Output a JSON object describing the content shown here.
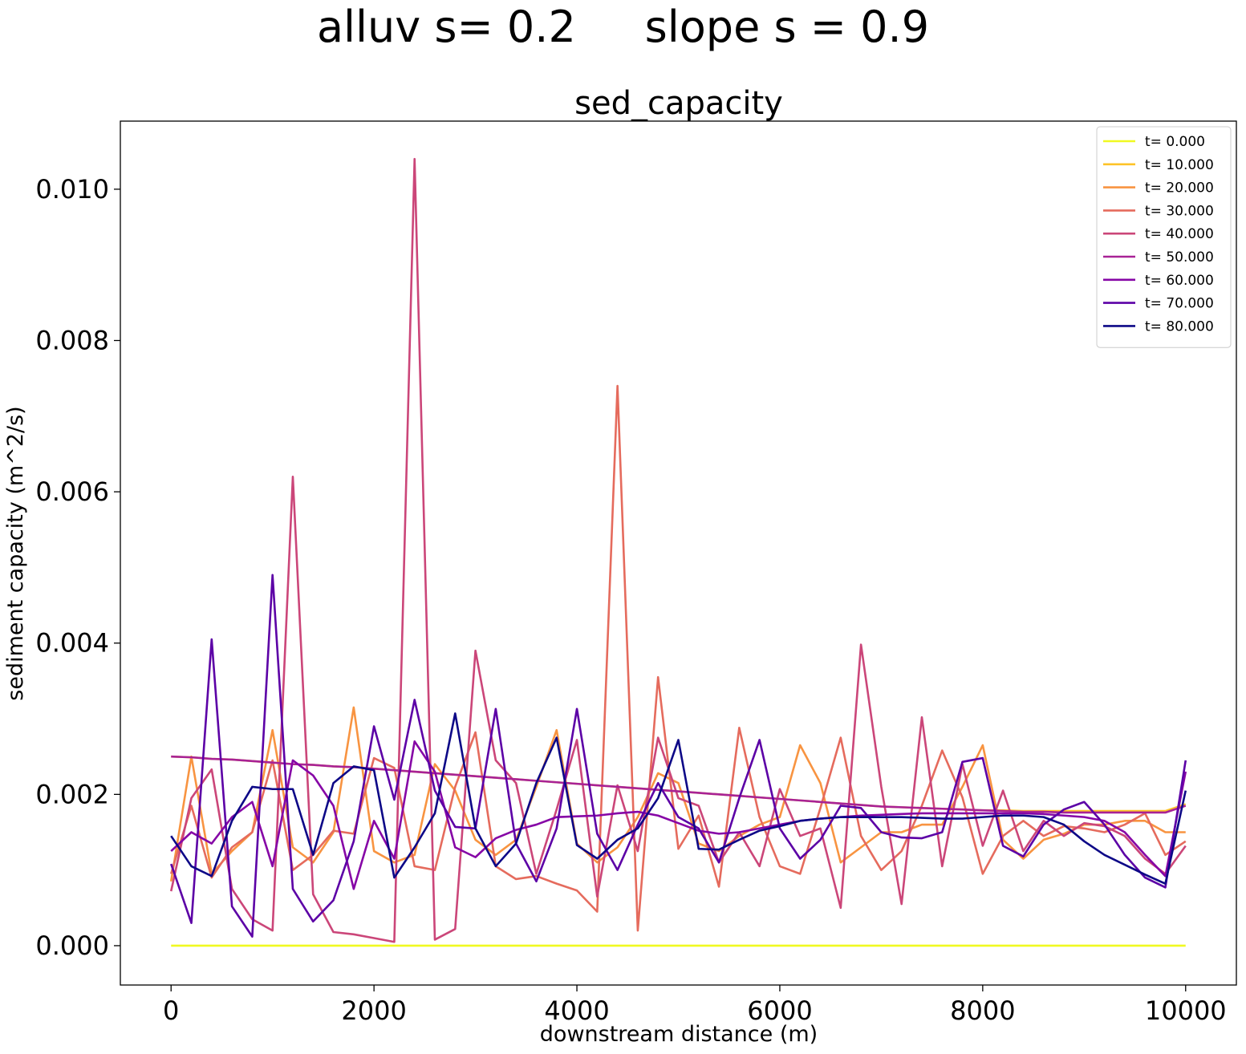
{
  "figure": {
    "suptitle": "alluv s= 0.2     slope s = 0.9"
  },
  "chart_data": {
    "type": "line",
    "title": "sed_capacity",
    "xlabel": "downstream distance (m)",
    "ylabel": "sediment capacity (m^2/s)",
    "xlim": [
      -500,
      10500
    ],
    "ylim": [
      -0.00052,
      0.0109
    ],
    "xticks": [
      0,
      2000,
      4000,
      6000,
      8000,
      10000
    ],
    "xtick_labels": [
      "0",
      "2000",
      "4000",
      "6000",
      "8000",
      "10000"
    ],
    "yticks": [
      0,
      0.002,
      0.004,
      0.006,
      0.008,
      0.01
    ],
    "ytick_labels": [
      "0.000",
      "0.002",
      "0.004",
      "0.006",
      "0.008",
      "0.010"
    ],
    "grid": false,
    "legend_position": "top-right",
    "x": [
      0,
      200,
      400,
      600,
      800,
      1000,
      1200,
      1400,
      1600,
      1800,
      2000,
      2200,
      2400,
      2600,
      2800,
      3000,
      3200,
      3400,
      3600,
      3800,
      4000,
      4200,
      4400,
      4600,
      4800,
      5000,
      5200,
      5400,
      5600,
      5800,
      6000,
      6200,
      6400,
      6600,
      6800,
      7000,
      7200,
      7400,
      7600,
      7800,
      8000,
      8200,
      8400,
      8600,
      8800,
      9000,
      9200,
      9400,
      9600,
      9800,
      10000
    ],
    "series": [
      {
        "name": "t= 0.000",
        "color": "#f0f921",
        "values": [
          0,
          0,
          0,
          0,
          0,
          0,
          0,
          0,
          0,
          0,
          0,
          0,
          0,
          0,
          0,
          0,
          0,
          0,
          0,
          0,
          0,
          0,
          0,
          0,
          0,
          0,
          0,
          0,
          0,
          0,
          0,
          0,
          0,
          0,
          0,
          0,
          0,
          0,
          0,
          0,
          0,
          0,
          0,
          0,
          0,
          0,
          0,
          0,
          0,
          0,
          0
        ]
      },
      {
        "name": "t= 10.000",
        "color": "#fdc328",
        "values": [
          0.0025,
          0.00249,
          0.00247,
          0.00246,
          0.00244,
          0.00242,
          0.0024,
          0.00239,
          0.00237,
          0.00236,
          0.00234,
          0.00232,
          0.0023,
          0.00228,
          0.00226,
          0.00224,
          0.00222,
          0.0022,
          0.00218,
          0.00216,
          0.00214,
          0.00212,
          0.0021,
          0.00208,
          0.00206,
          0.00204,
          0.00202,
          0.002,
          0.00198,
          0.00196,
          0.00194,
          0.00192,
          0.0019,
          0.00188,
          0.00186,
          0.00184,
          0.00183,
          0.00182,
          0.00181,
          0.0018,
          0.00179,
          0.00179,
          0.00178,
          0.00178,
          0.00178,
          0.00178,
          0.00178,
          0.00178,
          0.00178,
          0.00178,
          0.00187
        ]
      },
      {
        "name": "t= 20.000",
        "color": "#f89441",
        "values": [
          0.00085,
          0.0025,
          0.00095,
          0.00125,
          0.0015,
          0.00285,
          0.0013,
          0.0011,
          0.0015,
          0.00315,
          0.00125,
          0.0011,
          0.0012,
          0.0024,
          0.00205,
          0.0014,
          0.0012,
          0.0014,
          0.0021,
          0.00285,
          0.00135,
          0.0011,
          0.0013,
          0.0017,
          0.00228,
          0.00215,
          0.00135,
          0.00125,
          0.00145,
          0.0016,
          0.0017,
          0.00265,
          0.00215,
          0.0011,
          0.0013,
          0.0015,
          0.0015,
          0.0016,
          0.0016,
          0.0021,
          0.00265,
          0.0014,
          0.00115,
          0.0014,
          0.00148,
          0.0016,
          0.0016,
          0.00165,
          0.00165,
          0.0015,
          0.0015
        ]
      },
      {
        "name": "t= 30.000",
        "color": "#e56b5d",
        "values": [
          0.00095,
          0.00185,
          0.0009,
          0.0013,
          0.0015,
          0.00245,
          0.001,
          0.0012,
          0.00152,
          0.00148,
          0.00248,
          0.00235,
          0.00105,
          0.001,
          0.0021,
          0.00282,
          0.00105,
          0.00088,
          0.00092,
          0.00082,
          0.00073,
          0.00045,
          0.0074,
          0.0002,
          0.00355,
          0.00128,
          0.00172,
          0.00078,
          0.00288,
          0.0017,
          0.00105,
          0.00095,
          0.00182,
          0.00275,
          0.00145,
          0.001,
          0.00125,
          0.00185,
          0.00258,
          0.00196,
          0.00095,
          0.00145,
          0.00165,
          0.00145,
          0.00158,
          0.00155,
          0.0015,
          0.0016,
          0.00175,
          0.0012,
          0.00138
        ]
      },
      {
        "name": "t= 40.000",
        "color": "#cb4679",
        "values": [
          0.00072,
          0.00195,
          0.00233,
          0.00075,
          0.00035,
          0.0002,
          0.0062,
          0.00068,
          0.00018,
          0.00015,
          0.0001,
          5e-05,
          0.0104,
          8e-05,
          0.00022,
          0.0039,
          0.00245,
          0.00215,
          0.00095,
          0.0018,
          0.00272,
          0.00065,
          0.00212,
          0.00125,
          0.00275,
          0.00195,
          0.00185,
          0.0011,
          0.0015,
          0.00105,
          0.00207,
          0.00145,
          0.00155,
          0.0005,
          0.00398,
          0.0021,
          0.00055,
          0.00302,
          0.00105,
          0.0024,
          0.00132,
          0.00205,
          0.00125,
          0.00165,
          0.00145,
          0.00162,
          0.00158,
          0.00145,
          0.00115,
          0.00095,
          0.00132
        ]
      },
      {
        "name": "t= 50.000",
        "color": "#a82296",
        "values": [
          0.0025,
          0.00249,
          0.00247,
          0.00246,
          0.00244,
          0.00242,
          0.0024,
          0.00239,
          0.00237,
          0.00236,
          0.00234,
          0.00232,
          0.0023,
          0.00228,
          0.00226,
          0.00224,
          0.00222,
          0.0022,
          0.00218,
          0.00216,
          0.00214,
          0.00212,
          0.0021,
          0.00208,
          0.00206,
          0.00204,
          0.00202,
          0.002,
          0.00198,
          0.00196,
          0.00194,
          0.00192,
          0.0019,
          0.00188,
          0.00186,
          0.00184,
          0.00183,
          0.00182,
          0.00181,
          0.0018,
          0.00179,
          0.00178,
          0.00177,
          0.00177,
          0.00176,
          0.00176,
          0.00176,
          0.00176,
          0.00176,
          0.00176,
          0.00185
        ]
      },
      {
        "name": "t= 60.000",
        "color": "#8606a6",
        "values": [
          0.00125,
          0.0015,
          0.00135,
          0.0017,
          0.0019,
          0.00105,
          0.00245,
          0.00225,
          0.00185,
          0.00075,
          0.00165,
          0.00115,
          0.0027,
          0.0023,
          0.0013,
          0.00117,
          0.00142,
          0.00153,
          0.0016,
          0.0017,
          0.00171,
          0.00172,
          0.00175,
          0.00177,
          0.00172,
          0.00162,
          0.00152,
          0.00148,
          0.0015,
          0.00155,
          0.0016,
          0.00165,
          0.00168,
          0.0017,
          0.00172,
          0.00173,
          0.00174,
          0.00175,
          0.00175,
          0.00175,
          0.00175,
          0.00175,
          0.00175,
          0.00174,
          0.00172,
          0.0017,
          0.00165,
          0.0015,
          0.0012,
          0.00092,
          0.0023
        ]
      },
      {
        "name": "t= 70.000",
        "color": "#5c01a6",
        "values": [
          0.00108,
          0.0003,
          0.00405,
          0.00052,
          0.00012,
          0.0049,
          0.00075,
          0.00032,
          0.0006,
          0.00138,
          0.0029,
          0.00193,
          0.00325,
          0.00205,
          0.00157,
          0.00155,
          0.00313,
          0.00135,
          0.00085,
          0.00155,
          0.00313,
          0.00148,
          0.001,
          0.0016,
          0.00215,
          0.0017,
          0.00155,
          0.0011,
          0.00195,
          0.00272,
          0.00155,
          0.00115,
          0.0014,
          0.00185,
          0.00182,
          0.0015,
          0.00143,
          0.00142,
          0.0015,
          0.00243,
          0.00248,
          0.00132,
          0.00118,
          0.0016,
          0.0018,
          0.0019,
          0.0016,
          0.0012,
          0.0009,
          0.00077,
          0.00245
        ]
      },
      {
        "name": "t= 80.000",
        "color": "#0d0887",
        "values": [
          0.00145,
          0.00105,
          0.00092,
          0.00165,
          0.0021,
          0.00207,
          0.00207,
          0.0012,
          0.00215,
          0.00237,
          0.00232,
          0.0009,
          0.0013,
          0.00175,
          0.00307,
          0.00155,
          0.00105,
          0.00135,
          0.00215,
          0.00275,
          0.00133,
          0.00115,
          0.0014,
          0.00155,
          0.00195,
          0.00272,
          0.00128,
          0.00127,
          0.0014,
          0.00152,
          0.00158,
          0.00165,
          0.00168,
          0.0017,
          0.0017,
          0.0017,
          0.0017,
          0.00169,
          0.00168,
          0.00168,
          0.0017,
          0.00172,
          0.00172,
          0.0017,
          0.0016,
          0.00138,
          0.0012,
          0.00107,
          0.00094,
          0.00082,
          0.00205
        ]
      }
    ]
  }
}
